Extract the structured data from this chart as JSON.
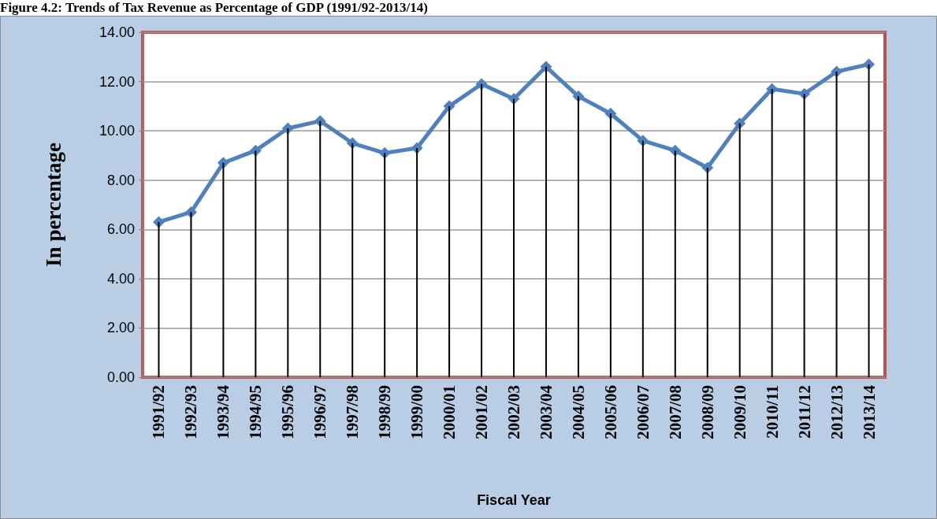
{
  "chart_data": {
    "type": "line",
    "title": "Figure 4.2: Trends of Tax Revenue as Percentage of GDP (1991/92-2013/14)",
    "xlabel": "Fiscal Year",
    "ylabel": "In percentage",
    "categories": [
      "1991/92",
      "1992/93",
      "1993/94",
      "1994/95",
      "1995/96",
      "1996/97",
      "1997/98",
      "1998/99",
      "1999/00",
      "2000/01",
      "2001/02",
      "2002/03",
      "2003/04",
      "2004/05",
      "2005/06",
      "2006/07",
      "2007/08",
      "2008/09",
      "2009/10",
      "2010/11",
      "2011/12",
      "2012/13",
      "2013/14"
    ],
    "series": [
      {
        "color": "#4f81bd",
        "values": [
          6.3,
          6.7,
          8.7,
          9.2,
          10.1,
          10.4,
          9.5,
          9.1,
          9.3,
          11.0,
          11.9,
          11.3,
          12.6,
          11.4,
          10.7,
          9.6,
          9.2,
          8.5,
          10.3,
          11.7,
          11.5,
          12.4,
          12.7
        ]
      },
      {
        "type": "bar",
        "color": "#000000",
        "values": [
          6.3,
          6.7,
          8.7,
          9.2,
          10.1,
          10.4,
          9.5,
          9.1,
          9.3,
          11.0,
          11.9,
          11.3,
          12.6,
          11.4,
          10.7,
          9.6,
          9.2,
          8.5,
          10.3,
          11.7,
          11.5,
          12.4,
          12.7
        ]
      }
    ],
    "ylim": [
      0,
      14
    ],
    "yticks": [
      {
        "value": 0,
        "label": "0.00"
      },
      {
        "value": 2,
        "label": "2.00"
      },
      {
        "value": 4,
        "label": "4.00"
      },
      {
        "value": 6,
        "label": "6.00"
      },
      {
        "value": 8,
        "label": "8.00"
      },
      {
        "value": 10,
        "label": "10.00"
      },
      {
        "value": 12,
        "label": "12.00"
      },
      {
        "value": 14,
        "label": "14.00"
      }
    ],
    "grid": "y",
    "marker": "diamond",
    "line_style": "solid"
  }
}
